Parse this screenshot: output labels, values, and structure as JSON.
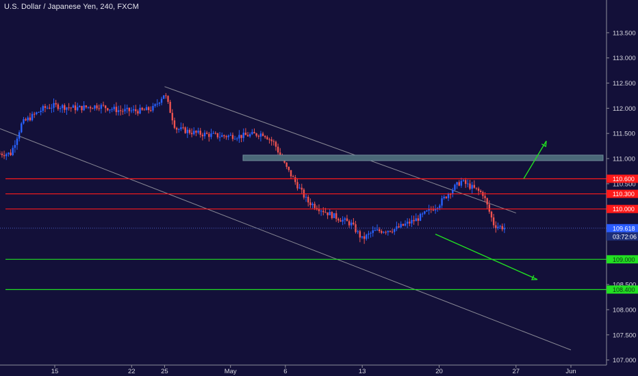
{
  "header": {
    "title": "U.S. Dollar / Japanese Yen, 240, FXCM"
  },
  "price_tag": {
    "value": "109.618",
    "countdown": "03:72:06"
  },
  "chart_data": {
    "type": "candlestick",
    "title": "U.S. Dollar / Japanese Yen, 240, FXCM",
    "symbol": "USDJPY",
    "timeframe": "240",
    "feed": "FXCM",
    "ylim": [
      106.9,
      114.15
    ],
    "y_ticks": [
      "107.000",
      "107.500",
      "108.000",
      "108.500",
      "109.000",
      "109.500",
      "110.000",
      "110.500",
      "111.000",
      "111.500",
      "112.000",
      "112.500",
      "113.000",
      "113.500"
    ],
    "x_ticks": [
      "15",
      "22",
      "25",
      "May",
      "6",
      "13",
      "20",
      "27",
      "Jun"
    ],
    "last_price": 109.618,
    "colors": {
      "background": "#131039",
      "up_candle": "#2962ff",
      "down_candle": "#ef5350",
      "resistance": "#ff1a1a",
      "support": "#22e022",
      "zone": "#4a6878",
      "channel": "#8a8a96",
      "arrow": "#22e022"
    },
    "levels": [
      {
        "price": 110.6,
        "label": "110.600",
        "kind": "resistance"
      },
      {
        "price": 110.3,
        "label": "110.300",
        "kind": "resistance"
      },
      {
        "price": 110.0,
        "label": "110.000",
        "kind": "resistance"
      },
      {
        "price": 109.0,
        "label": "109.000",
        "kind": "support"
      },
      {
        "price": 108.4,
        "label": "108.400",
        "kind": "support"
      }
    ],
    "zone": {
      "from_price": 110.96,
      "to_price": 111.07
    },
    "channel": {
      "upper": [
        {
          "date": "2019-04-25",
          "price": 112.43
        },
        {
          "date": "2019-05-27",
          "price": 109.92
        }
      ],
      "lower": [
        {
          "date": "2019-04-09",
          "price": 111.68
        },
        {
          "date": "2019-06-01",
          "price": 107.2
        }
      ]
    },
    "arrows": [
      {
        "direction": "up",
        "from_price": 110.6,
        "to_price": 111.35
      },
      {
        "direction": "down",
        "from_price": 109.5,
        "to_price": 108.6
      }
    ],
    "candles_path": [
      {
        "date": "2019-04-10",
        "price": 111.1
      },
      {
        "date": "2019-04-11",
        "price": 111.1
      },
      {
        "date": "2019-04-12",
        "price": 111.7
      },
      {
        "date": "2019-04-14",
        "price": 112.0
      },
      {
        "date": "2019-04-15",
        "price": 112.05
      },
      {
        "date": "2019-04-17",
        "price": 112.0
      },
      {
        "date": "2019-04-19",
        "price": 112.05
      },
      {
        "date": "2019-04-21",
        "price": 111.95
      },
      {
        "date": "2019-04-23",
        "price": 111.95
      },
      {
        "date": "2019-04-24",
        "price": 112.0
      },
      {
        "date": "2019-04-25",
        "price": 112.3
      },
      {
        "date": "2019-04-26",
        "price": 111.6
      },
      {
        "date": "2019-04-28",
        "price": 111.5
      },
      {
        "date": "2019-04-30",
        "price": 111.45
      },
      {
        "date": "2019-05-02",
        "price": 111.45
      },
      {
        "date": "2019-05-04",
        "price": 111.5
      },
      {
        "date": "2019-05-05",
        "price": 111.3
      },
      {
        "date": "2019-05-06",
        "price": 110.85
      },
      {
        "date": "2019-05-08",
        "price": 110.15
      },
      {
        "date": "2019-05-10",
        "price": 109.9
      },
      {
        "date": "2019-05-12",
        "price": 109.7
      },
      {
        "date": "2019-05-13",
        "price": 109.4
      },
      {
        "date": "2019-05-14",
        "price": 109.55
      },
      {
        "date": "2019-05-16",
        "price": 109.6
      },
      {
        "date": "2019-05-18",
        "price": 109.8
      },
      {
        "date": "2019-05-20",
        "price": 110.1
      },
      {
        "date": "2019-05-21",
        "price": 110.35
      },
      {
        "date": "2019-05-22",
        "price": 110.55
      },
      {
        "date": "2019-05-24",
        "price": 110.3
      },
      {
        "date": "2019-05-25",
        "price": 109.68
      },
      {
        "date": "2019-05-26",
        "price": 109.62
      }
    ]
  }
}
